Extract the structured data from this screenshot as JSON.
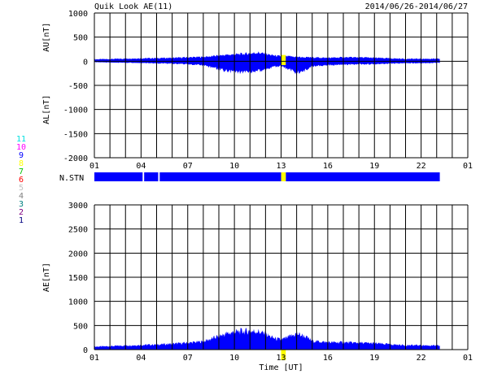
{
  "header": {
    "title": "Quik Look AE(11)",
    "date_range": "2014/06/26-2014/06/27"
  },
  "station_label": "N.STN",
  "station_key": [
    {
      "n": "11",
      "color": "#00e0e0"
    },
    {
      "n": "10",
      "color": "#ff00ff"
    },
    {
      "n": "9",
      "color": "#0000ff"
    },
    {
      "n": "8",
      "color": "#ffff00"
    },
    {
      "n": "7",
      "color": "#00c000"
    },
    {
      "n": "6",
      "color": "#ff0000"
    },
    {
      "n": "5",
      "color": "#c0c0c0"
    },
    {
      "n": "4",
      "color": "#808080"
    },
    {
      "n": "3",
      "color": "#008080"
    },
    {
      "n": "2",
      "color": "#800080"
    },
    {
      "n": "1",
      "color": "#000080"
    }
  ],
  "colors": {
    "fill": "#0000ff",
    "gap": "#ffff00",
    "grid": "#000000",
    "background": "#ffffff"
  },
  "chart_data": [
    {
      "type": "area",
      "panel": "AU/AL",
      "ylabel_upper": "AU[nT]",
      "ylabel_lower": "AL[nT]",
      "ylim": [
        -2000,
        1000
      ],
      "yticks": [
        "1000",
        "500",
        "0",
        "-500",
        "-1000",
        "-1500",
        "-2000"
      ],
      "xlim": [
        1,
        25
      ],
      "xticks": [
        "01",
        "04",
        "07",
        "10",
        "13",
        "16",
        "19",
        "22",
        "01"
      ],
      "grid": true,
      "data_end_hour": 23.2,
      "gap": [
        13.0,
        13.3
      ],
      "au": {
        "x": [
          1,
          2,
          3,
          4,
          5,
          6,
          7,
          8,
          8.5,
          9,
          9.5,
          10,
          10.5,
          11,
          11.5,
          12,
          12.5,
          13,
          13.5,
          14,
          14.5,
          15,
          16,
          17,
          18,
          19,
          20,
          21,
          22,
          23.2
        ],
        "y": [
          40,
          45,
          55,
          60,
          65,
          70,
          80,
          90,
          100,
          120,
          130,
          140,
          150,
          160,
          180,
          150,
          120,
          100,
          100,
          90,
          80,
          80,
          70,
          80,
          80,
          70,
          60,
          50,
          50,
          50
        ]
      },
      "al": {
        "x": [
          1,
          2,
          3,
          4,
          5,
          6,
          7,
          8,
          8.5,
          9,
          9.5,
          10,
          10.5,
          11,
          11.5,
          12,
          12.5,
          13,
          13.5,
          14,
          14.5,
          15,
          16,
          17,
          18,
          19,
          20,
          21,
          22,
          23.2
        ],
        "y": [
          -20,
          -25,
          -30,
          -35,
          -40,
          -50,
          -60,
          -80,
          -120,
          -160,
          -200,
          -220,
          -230,
          -220,
          -200,
          -170,
          -120,
          -100,
          -160,
          -240,
          -200,
          -100,
          -80,
          -70,
          -60,
          -60,
          -50,
          -40,
          -40,
          -30
        ]
      }
    },
    {
      "type": "area",
      "panel": "AE",
      "ylabel": "AE[nT]",
      "xlabel": "Time [UT]",
      "ylim": [
        0,
        3000
      ],
      "yticks": [
        "3000",
        "2500",
        "2000",
        "1500",
        "1000",
        "500",
        "0"
      ],
      "xlim": [
        1,
        25
      ],
      "xticks": [
        "01",
        "04",
        "07",
        "10",
        "13",
        "16",
        "19",
        "22",
        "01"
      ],
      "grid": true,
      "data_end_hour": 23.2,
      "gap": [
        13.0,
        13.3
      ],
      "ae": {
        "x": [
          1,
          2,
          3,
          4,
          5,
          6,
          7,
          8,
          8.5,
          9,
          9.5,
          10,
          10.5,
          11,
          11.5,
          12,
          12.5,
          13,
          13.5,
          14,
          14.5,
          15,
          16,
          17,
          18,
          19,
          20,
          21,
          22,
          23.2
        ],
        "y": [
          60,
          70,
          85,
          95,
          105,
          120,
          140,
          170,
          220,
          280,
          330,
          360,
          380,
          380,
          380,
          320,
          240,
          200,
          260,
          330,
          280,
          180,
          150,
          150,
          140,
          130,
          110,
          90,
          90,
          80
        ]
      }
    }
  ],
  "station_bar": {
    "segments": [
      {
        "start": 1,
        "end": 4.1
      },
      {
        "start": 4.2,
        "end": 5.1
      },
      {
        "start": 5.2,
        "end": 13.0
      },
      {
        "start": 13.3,
        "end": 23.2
      }
    ]
  }
}
